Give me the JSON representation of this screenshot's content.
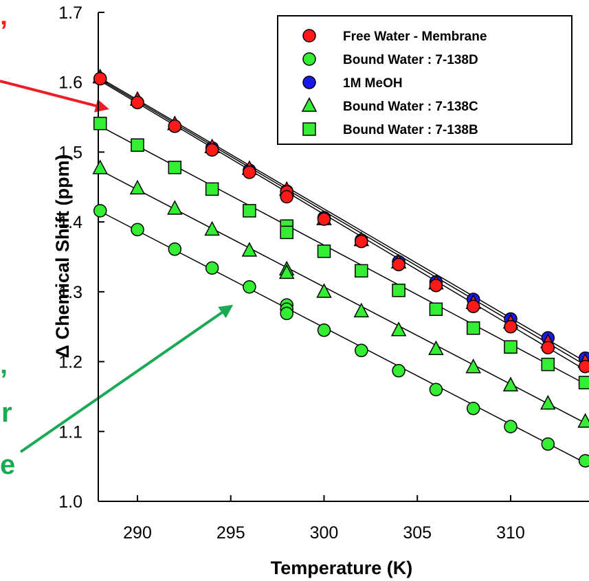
{
  "chart_data": {
    "type": "scatter",
    "xlabel": "Temperature (K)",
    "ylabel": "Δ Chemical Shift (ppm)",
    "xlim": [
      287.9,
      314.2
    ],
    "ylim": [
      1.0,
      1.7
    ],
    "xticks": [
      290,
      295,
      300,
      305,
      310
    ],
    "yticks": [
      1.0,
      1.1,
      1.2,
      1.3,
      1.4,
      1.5,
      1.6,
      1.7
    ],
    "xtick_labels": [
      "290",
      "295",
      "300",
      "305",
      "310"
    ],
    "ytick_labels": [
      "1.0",
      "1.1",
      "1.2",
      "1.3",
      "1.4",
      "1.5",
      "1.6",
      "1.7"
    ],
    "grid": false,
    "legend_position": "top-right",
    "series": [
      {
        "name": "Free Water - Membrane",
        "marker": "circle",
        "color": "#ff1a1a",
        "x": [
          288,
          290,
          292,
          294,
          296,
          298,
          298,
          300,
          302,
          304,
          306,
          308,
          310,
          312,
          314
        ],
        "y": [
          1.605,
          1.571,
          1.537,
          1.503,
          1.471,
          1.443,
          1.436,
          1.404,
          1.372,
          1.339,
          1.309,
          1.279,
          1.25,
          1.22,
          1.193
        ]
      },
      {
        "name": "Bound Water : 7-138D",
        "marker": "circle",
        "color": "#33ee33",
        "x": [
          288,
          290,
          292,
          294,
          296,
          298,
          298,
          298,
          300,
          302,
          304,
          306,
          308,
          310,
          312,
          314
        ],
        "y": [
          1.416,
          1.389,
          1.361,
          1.334,
          1.307,
          1.281,
          1.275,
          1.269,
          1.245,
          1.216,
          1.187,
          1.16,
          1.133,
          1.107,
          1.082,
          1.058
        ]
      },
      {
        "name": "1M MeOH",
        "marker": "circle",
        "color": "#1a1aee",
        "x": [
          288,
          290,
          292,
          294,
          296,
          298,
          300,
          302,
          304,
          306,
          308,
          310,
          312,
          314
        ],
        "y": [
          1.605,
          1.571,
          1.537,
          1.506,
          1.474,
          1.444,
          1.406,
          1.374,
          1.343,
          1.314,
          1.289,
          1.261,
          1.234,
          1.205
        ]
      },
      {
        "name": "Bound Water : 7-138C",
        "marker": "triangle",
        "color": "#33ee33",
        "x": [
          288,
          290,
          292,
          294,
          296,
          298,
          298,
          300,
          302,
          304,
          306,
          308,
          310,
          312,
          314
        ],
        "y": [
          1.477,
          1.448,
          1.419,
          1.389,
          1.359,
          1.332,
          1.327,
          1.3,
          1.272,
          1.245,
          1.218,
          1.192,
          1.166,
          1.14,
          1.114
        ]
      },
      {
        "name": "Bound Water : 7-138B",
        "marker": "square",
        "color": "#33ee33",
        "x": [
          288,
          290,
          292,
          294,
          296,
          298,
          298,
          300,
          302,
          304,
          306,
          308,
          310,
          312,
          314
        ],
        "y": [
          1.541,
          1.51,
          1.478,
          1.447,
          1.416,
          1.394,
          1.385,
          1.358,
          1.33,
          1.302,
          1.275,
          1.248,
          1.221,
          1.196,
          1.17
        ]
      },
      {
        "name": "",
        "marker": "triangle",
        "color": "#ff1a1a",
        "x": [
          288,
          290,
          292,
          294,
          296,
          298,
          300,
          302,
          304,
          306,
          308,
          310,
          312,
          314
        ],
        "y": [
          1.607,
          1.575,
          1.54,
          1.507,
          1.476,
          1.446,
          1.404,
          1.374,
          1.342,
          1.312,
          1.284,
          1.256,
          1.228,
          1.2
        ]
      }
    ],
    "fit_lines": [
      {
        "x": [
          288,
          314
        ],
        "y": [
          1.602,
          1.188
        ]
      },
      {
        "x": [
          288,
          314
        ],
        "y": [
          1.604,
          1.195
        ]
      },
      {
        "x": [
          288,
          314
        ],
        "y": [
          1.606,
          1.2
        ]
      },
      {
        "x": [
          288,
          314
        ],
        "y": [
          1.415,
          1.055
        ]
      },
      {
        "x": [
          288,
          314
        ],
        "y": [
          1.474,
          1.112
        ]
      },
      {
        "x": [
          288,
          314
        ],
        "y": [
          1.537,
          1.168
        ]
      }
    ],
    "annotations": [
      {
        "text": "’",
        "color": "#ff1a1a",
        "arrow_color": "#ee1c24",
        "arrow_target": [
          295.7,
          1.581
        ]
      },
      {
        "text": "’",
        "color": "#1aaa55",
        "arrow_color": "#1aaa55",
        "arrow_target": [
          296.9,
          1.281
        ]
      },
      {
        "text": "r",
        "color": "#1aaa55"
      },
      {
        "text": "e",
        "color": "#1aaa55"
      }
    ]
  }
}
